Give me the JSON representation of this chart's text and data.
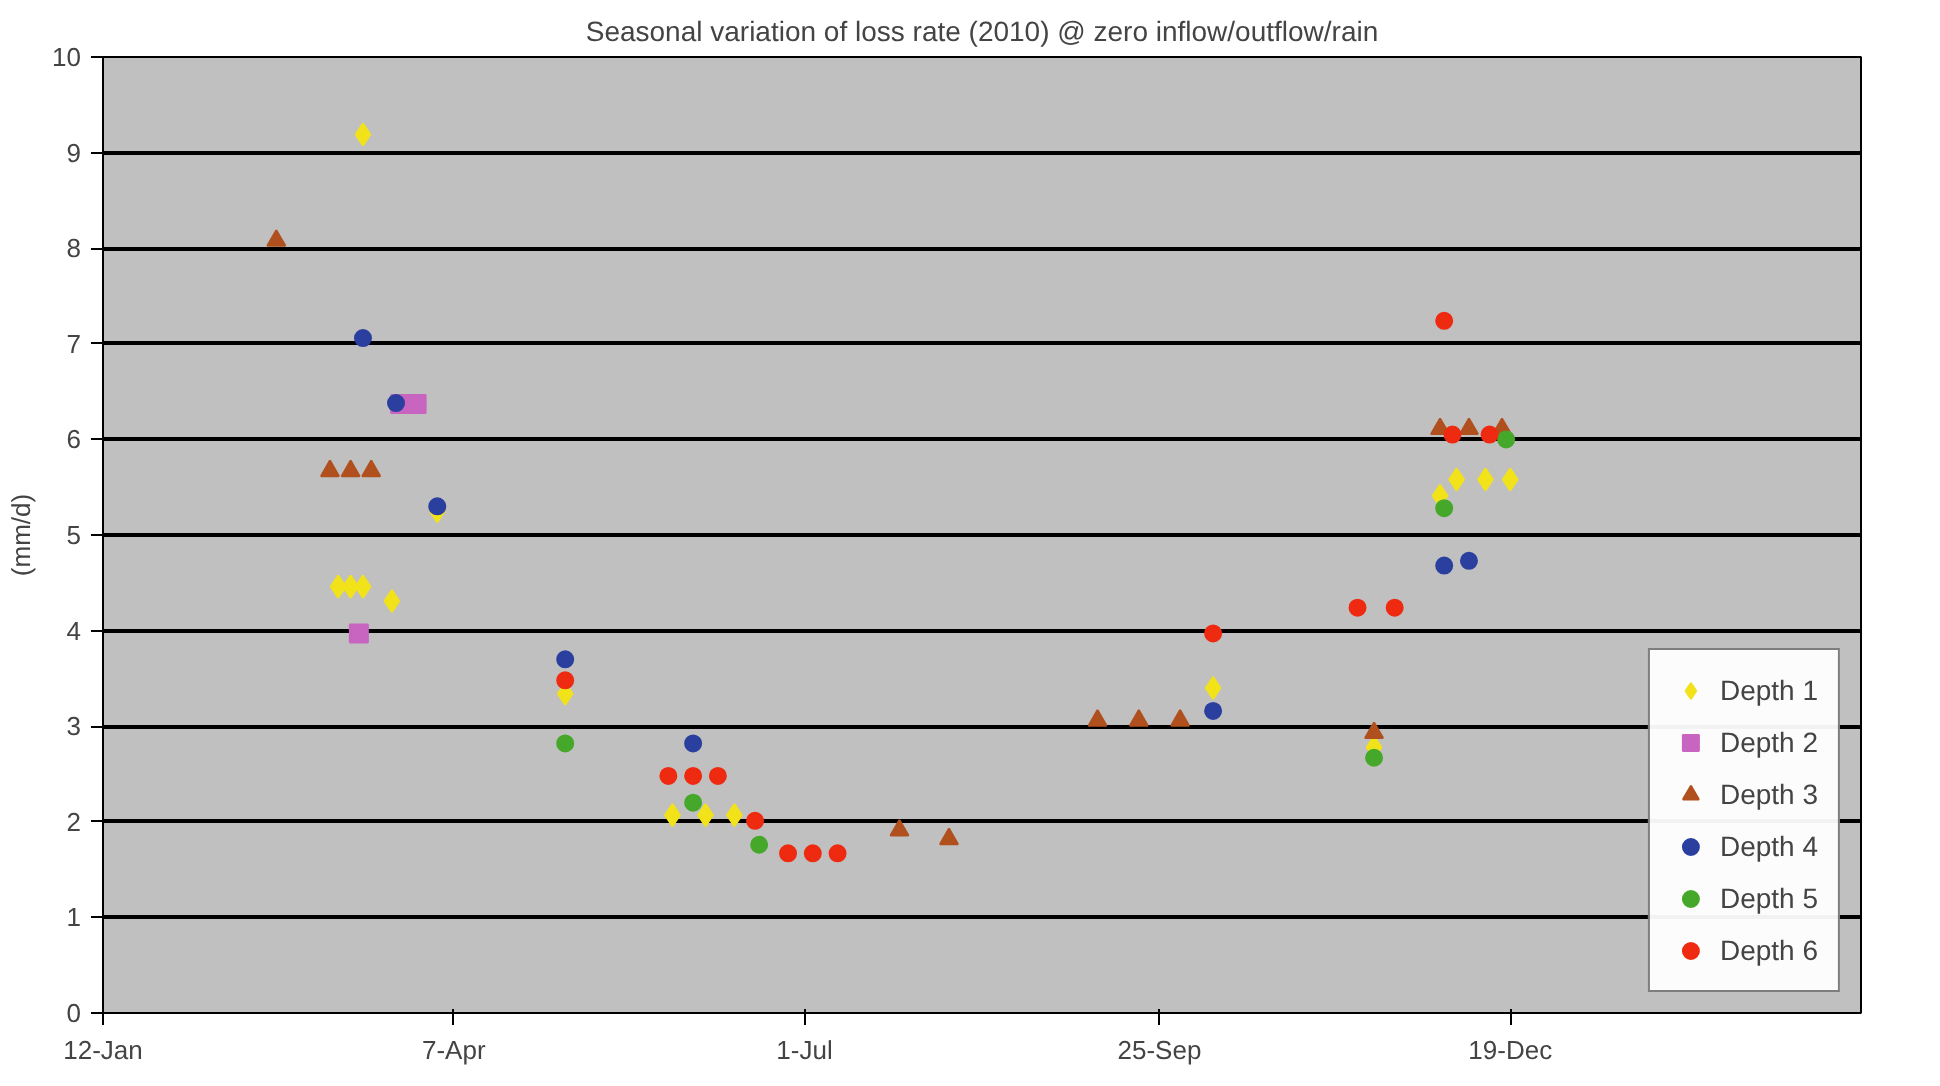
{
  "chart_data": {
    "type": "scatter",
    "title": "Seasonal variation of loss rate (2010) @ zero inflow/outflow/rain",
    "ylabel": "(mm/d)",
    "xlim": [
      "2010-01-12",
      "2011-03-14"
    ],
    "xticks": [
      {
        "value": "2010-01-12",
        "label": "12-Jan"
      },
      {
        "value": "2010-04-07",
        "label": "7-Apr"
      },
      {
        "value": "2010-07-01",
        "label": "1-Jul"
      },
      {
        "value": "2010-09-25",
        "label": "25-Sep"
      },
      {
        "value": "2010-12-19",
        "label": "19-Dec"
      }
    ],
    "ylim": [
      0,
      10
    ],
    "yticks": [
      0,
      1,
      2,
      3,
      4,
      5,
      6,
      7,
      8,
      9,
      10
    ],
    "grid": "y",
    "legend": "bottom right",
    "series": [
      {
        "name": "Depth 1",
        "color": "#f2e21a",
        "marker": "diamond",
        "x": [
          "2010-03-16",
          "2010-03-10",
          "2010-03-13",
          "2010-03-16",
          "2010-03-23",
          "2010-04-03",
          "2010-05-04",
          "2010-05-30",
          "2010-06-07",
          "2010-06-14",
          "2010-10-08",
          "2010-11-16",
          "2010-12-02",
          "2010-12-06",
          "2010-12-13",
          "2010-12-19"
        ],
        "values": [
          9.19,
          4.46,
          4.46,
          4.46,
          4.31,
          5.25,
          3.34,
          2.07,
          2.07,
          2.07,
          3.4,
          2.78,
          5.41,
          5.58,
          5.58,
          5.58
        ]
      },
      {
        "name": "Depth 2",
        "color": "#c865c0",
        "marker": "square",
        "x": [
          "2010-03-15",
          "2010-03-25",
          "2010-03-29"
        ],
        "values": [
          3.97,
          6.37,
          6.37
        ]
      },
      {
        "name": "Depth 3",
        "color": "#b0501e",
        "marker": "triangle",
        "x": [
          "2010-02-23",
          "2010-03-08",
          "2010-03-13",
          "2010-03-18",
          "2010-07-24",
          "2010-08-05",
          "2010-09-10",
          "2010-09-20",
          "2010-09-30",
          "2010-11-16",
          "2010-12-02",
          "2010-12-09",
          "2010-12-17"
        ],
        "values": [
          8.08,
          5.67,
          5.67,
          5.67,
          1.91,
          1.82,
          3.06,
          3.06,
          3.06,
          2.93,
          6.11,
          6.11,
          6.11
        ]
      },
      {
        "name": "Depth 4",
        "color": "#2a3f9e",
        "marker": "circle",
        "x": [
          "2010-03-16",
          "2010-03-24",
          "2010-04-03",
          "2010-05-04",
          "2010-06-04",
          "2010-10-08",
          "2010-12-03",
          "2010-12-09"
        ],
        "values": [
          7.06,
          6.38,
          5.3,
          3.7,
          2.82,
          3.16,
          4.68,
          4.73
        ]
      },
      {
        "name": "Depth 5",
        "color": "#46a82a",
        "marker": "circle",
        "x": [
          "2010-05-04",
          "2010-06-04",
          "2010-06-20",
          "2010-11-16",
          "2010-12-03",
          "2010-12-18"
        ],
        "values": [
          2.82,
          2.2,
          1.76,
          2.67,
          5.28,
          6.0
        ]
      },
      {
        "name": "Depth 6",
        "color": "#ee2a10",
        "marker": "circle",
        "x": [
          "2010-05-04",
          "2010-05-29",
          "2010-06-04",
          "2010-06-10",
          "2010-06-19",
          "2010-06-27",
          "2010-07-03",
          "2010-07-09",
          "2010-10-08",
          "2010-11-12",
          "2010-11-21",
          "2010-12-03",
          "2010-12-05",
          "2010-12-14"
        ],
        "values": [
          3.48,
          2.48,
          2.48,
          2.48,
          2.01,
          1.67,
          1.67,
          1.67,
          3.97,
          4.24,
          4.24,
          7.24,
          6.05,
          6.05
        ]
      }
    ]
  }
}
